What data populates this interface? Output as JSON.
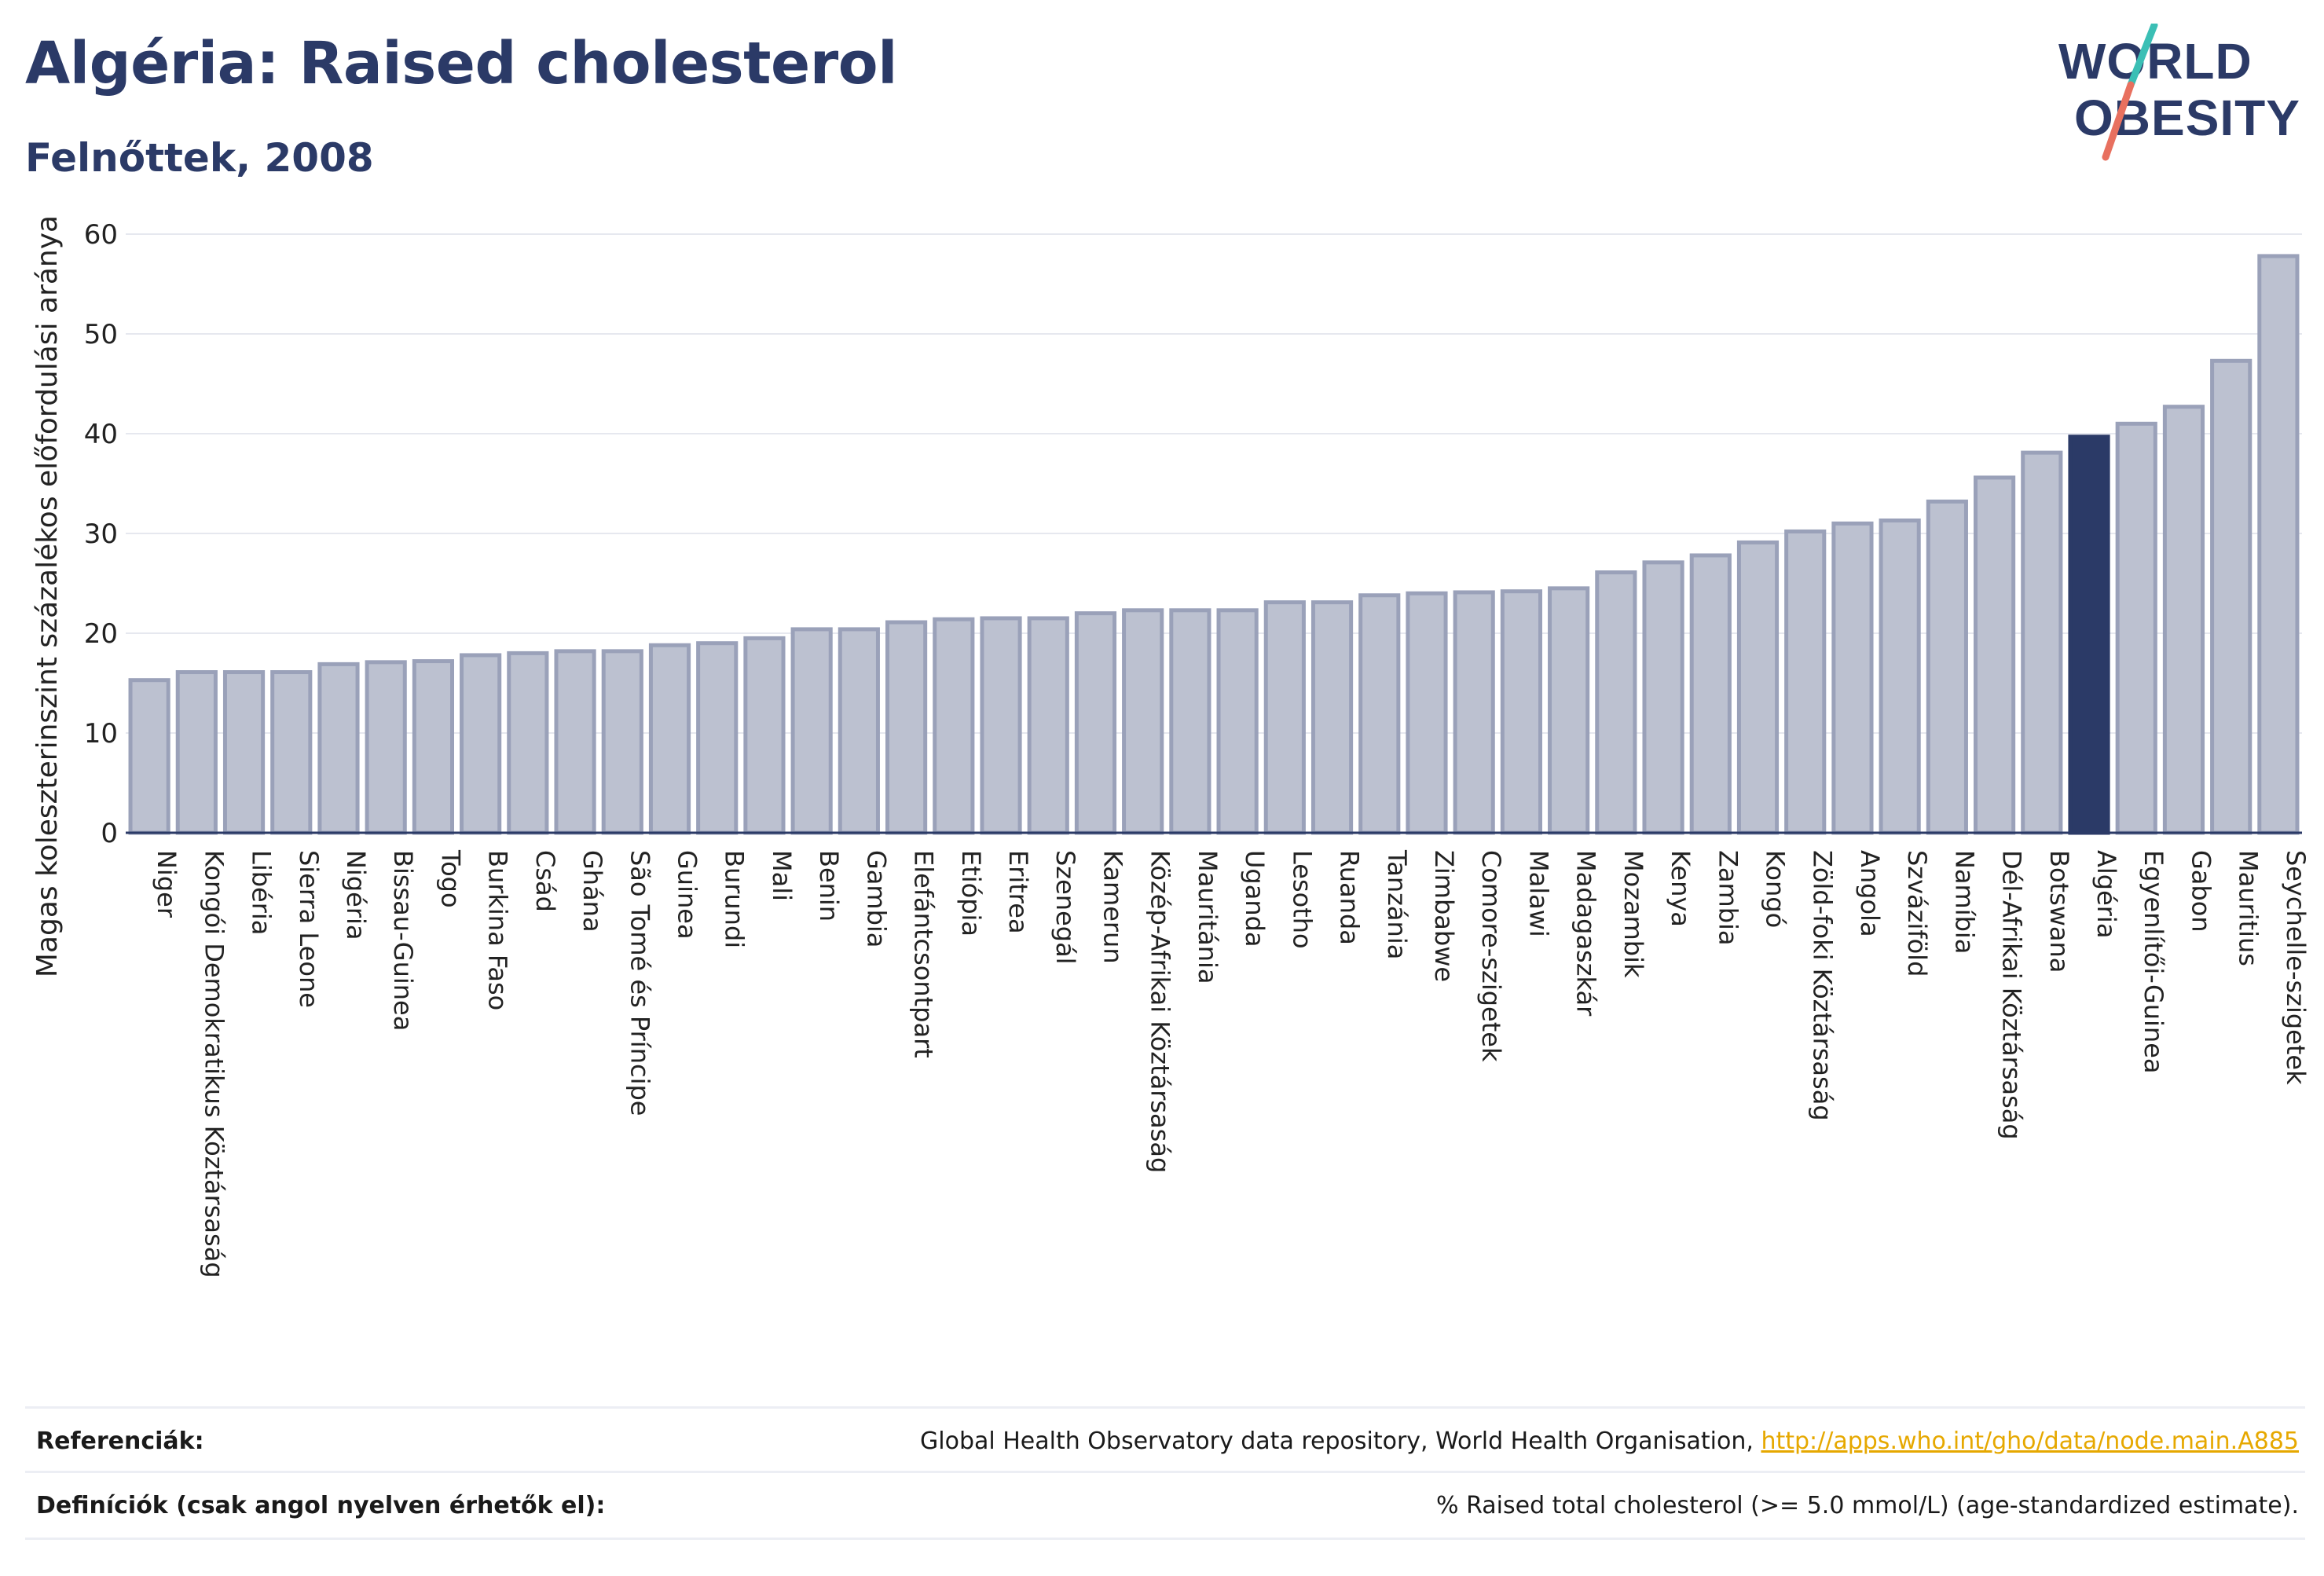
{
  "header": {
    "title": "Algéria: Raised cholesterol",
    "subtitle": "Felnőttek, 2008"
  },
  "logo": {
    "line1": "WORLD",
    "line2": "OBESITY",
    "colors": {
      "text": "#2b3a67",
      "slash_top": "#3bbfb5",
      "slash_bottom": "#e8705f"
    }
  },
  "chart_data": {
    "type": "bar",
    "title": "Algéria: Raised cholesterol",
    "subtitle": "Felnőttek, 2008",
    "ylabel": "Magas koleszterinszint százalékos előfordulási aránya",
    "ylim": [
      0,
      60
    ],
    "yticks": [
      0,
      10,
      20,
      30,
      40,
      50,
      60
    ],
    "grid": true,
    "highlight": "Algéria",
    "colors": {
      "bar": "#bcc1d0",
      "bar_edge": "#9aa1b9",
      "highlight": "#2b3a67",
      "grid": "#e6e8ef",
      "axis": "#2b3a67"
    },
    "categories": [
      "Niger",
      "Kongói Demokratikus Köztársaság",
      "Libéria",
      "Sierra Leone",
      "Nigéria",
      "Bissau-Guinea",
      "Togo",
      "Burkina Faso",
      "Csád",
      "Ghána",
      "São Tomé és Príncipe",
      "Guinea",
      "Burundi",
      "Mali",
      "Benin",
      "Gambia",
      "Elefántcsontpart",
      "Etiópia",
      "Eritrea",
      "Szenegál",
      "Kamerun",
      "Közép-Afrikai Köztársaság",
      "Mauritánia",
      "Uganda",
      "Lesotho",
      "Ruanda",
      "Tanzánia",
      "Zimbabwe",
      "Comore-szigetek",
      "Malawi",
      "Madagaszkár",
      "Mozambik",
      "Kenya",
      "Zambia",
      "Kongó",
      "Zöld-foki Köztársaság",
      "Angola",
      "Szváziföld",
      "Namíbia",
      "Dél-Afrikai Köztársaság",
      "Botswana",
      "Algéria",
      "Egyenlítői-Guinea",
      "Gabon",
      "Mauritius",
      "Seychelle-szigetek"
    ],
    "values": [
      15.3,
      16.1,
      16.1,
      16.1,
      16.9,
      17.1,
      17.2,
      17.8,
      18.0,
      18.2,
      18.2,
      18.8,
      19.0,
      19.5,
      20.4,
      20.4,
      21.1,
      21.4,
      21.5,
      21.5,
      22.0,
      22.3,
      22.3,
      22.3,
      23.1,
      23.1,
      23.8,
      24.0,
      24.1,
      24.2,
      24.5,
      26.1,
      27.1,
      27.8,
      29.1,
      30.2,
      31.0,
      31.3,
      33.2,
      35.6,
      38.1,
      39.7,
      41.0,
      42.7,
      47.3,
      57.8
    ]
  },
  "footer": {
    "references_label": "Referenciák:",
    "references_text": "Global Health Observatory data repository, World Health Organisation, ",
    "references_link": "http://apps.who.int/gho/data/node.main.A885",
    "definitions_label": "Definíciók (csak angol nyelven érhetők el):",
    "definitions_text": "% Raised total cholesterol (>= 5.0 mmol/L) (age-standardized estimate)."
  }
}
